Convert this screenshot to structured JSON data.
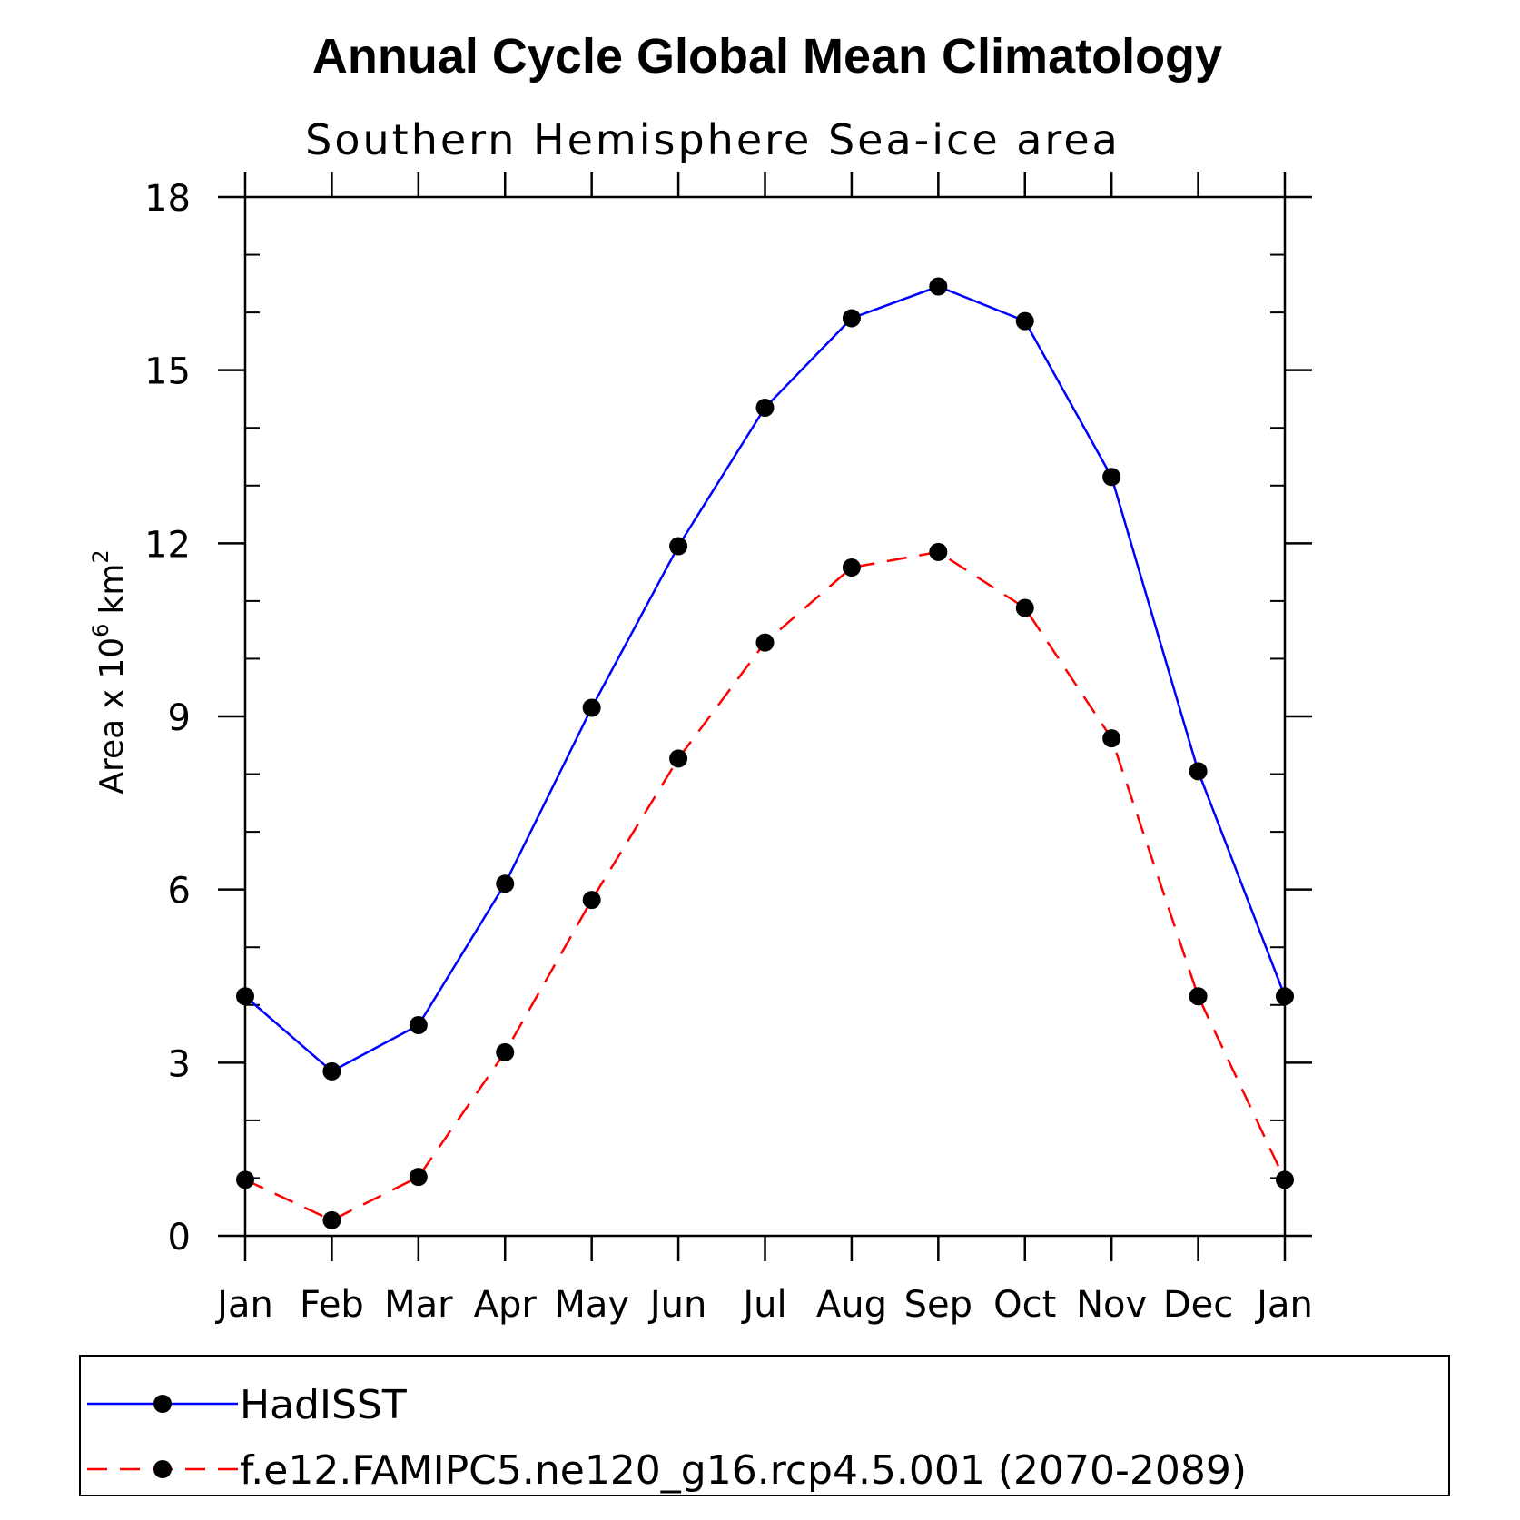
{
  "chart_data": {
    "type": "line",
    "title": "Annual Cycle Global Mean Climatology",
    "subtitle": "Southern Hemisphere Sea-ice area",
    "xlabel": "",
    "ylabel": {
      "prefix": "Area x 10",
      "exponent": "6",
      "unit": "km",
      "unit_exponent": "2"
    },
    "categories": [
      "Jan",
      "Feb",
      "Mar",
      "Apr",
      "May",
      "Jun",
      "Jul",
      "Aug",
      "Sep",
      "Oct",
      "Nov",
      "Dec",
      "Jan"
    ],
    "ylim": [
      0,
      18
    ],
    "yticks": [
      0,
      3,
      6,
      9,
      12,
      15,
      18
    ],
    "series": [
      {
        "name": "HadISST",
        "color": "#0000ff",
        "style": "solid",
        "values": [
          4.15,
          2.85,
          3.65,
          6.1,
          9.15,
          11.95,
          14.35,
          15.9,
          16.45,
          15.85,
          13.15,
          8.05,
          4.15
        ]
      },
      {
        "name": "f.e12.FAMIPC5.ne120_g16.rcp4.5.001 (2070-2089)",
        "color": "#ff0000",
        "style": "dashed",
        "values": [
          0.97,
          0.27,
          1.02,
          3.18,
          5.82,
          8.27,
          10.28,
          11.58,
          11.85,
          10.88,
          8.62,
          4.15,
          0.97
        ]
      }
    ],
    "legend": "bottom"
  }
}
